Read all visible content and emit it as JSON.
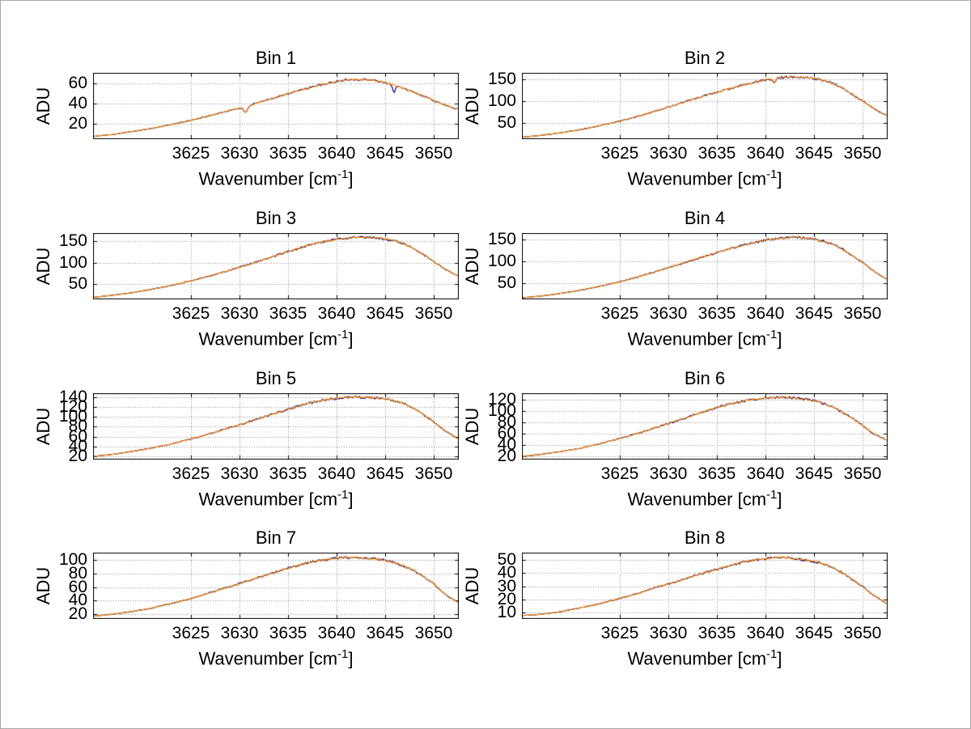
{
  "figure": {
    "background": "#ffffff",
    "grid_style": "dotted",
    "grid_color": "#888888",
    "axis_color": "#000000"
  },
  "chart_data": {
    "type": "line",
    "layout": "4 rows x 2 columns subplots",
    "y_label": "ADU",
    "x_label_prefix": "Wavenumber [cm",
    "x_label_sup": "-1",
    "x_label_suffix": "]",
    "x_ticks": [
      3625,
      3630,
      3635,
      3640,
      3645,
      3650
    ],
    "xlim": [
      3615,
      3652.5
    ],
    "series_colors": {
      "raw": "#00008b",
      "overlay": "#ff8c00"
    },
    "x_control": [
      3615,
      3617,
      3619,
      3621,
      3623,
      3625,
      3627,
      3629,
      3631,
      3633,
      3635,
      3636,
      3637,
      3638,
      3639,
      3640,
      3641,
      3642,
      3643,
      3644,
      3645,
      3646,
      3647,
      3648,
      3649,
      3650,
      3651,
      3652.5
    ],
    "bins": [
      {
        "title": "Bin 1",
        "ylim": [
          5,
          70
        ],
        "y_ticks": [
          20,
          40,
          60
        ],
        "values": [
          7,
          9,
          12,
          15,
          19,
          23,
          28,
          33,
          38,
          44,
          50,
          53,
          55,
          58,
          60,
          62,
          64,
          64,
          64,
          63,
          61,
          58,
          55,
          51,
          47,
          43,
          39,
          34
        ],
        "dips": [
          [
            3630.6,
            6,
            0.2
          ]
        ],
        "blue_dips": [
          [
            3645.9,
            7,
            0.12
          ]
        ]
      },
      {
        "title": "Bin 2",
        "ylim": [
          15,
          162
        ],
        "y_ticks": [
          50,
          100,
          150
        ],
        "values": [
          18,
          22,
          28,
          35,
          44,
          54,
          66,
          79,
          93,
          107,
          120,
          126,
          132,
          138,
          143,
          148,
          152,
          154,
          155,
          154,
          151,
          146,
          140,
          128,
          114,
          100,
          85,
          66
        ],
        "dips": [
          [
            3640.9,
            11,
            0.13
          ]
        ],
        "blue_dips": []
      },
      {
        "title": "Bin 3",
        "ylim": [
          15,
          168
        ],
        "y_ticks": [
          50,
          100,
          150
        ],
        "values": [
          18,
          23,
          29,
          37,
          46,
          57,
          69,
          82,
          96,
          111,
          126,
          133,
          140,
          146,
          151,
          155,
          158,
          160,
          160,
          159,
          156,
          151,
          144,
          132,
          118,
          103,
          87,
          68
        ],
        "dips": [],
        "blue_dips": []
      },
      {
        "title": "Bin 4",
        "ylim": [
          15,
          162
        ],
        "y_ticks": [
          50,
          100,
          150
        ],
        "values": [
          17,
          21,
          27,
          34,
          43,
          53,
          65,
          78,
          92,
          106,
          119,
          126,
          132,
          138,
          143,
          147,
          151,
          153,
          154,
          153,
          150,
          145,
          138,
          126,
          112,
          97,
          80,
          58
        ],
        "dips": [],
        "blue_dips": []
      },
      {
        "title": "Bin 5",
        "ylim": [
          15,
          146
        ],
        "y_ticks": [
          20,
          40,
          60,
          80,
          100,
          120,
          140
        ],
        "values": [
          20,
          24,
          30,
          37,
          45,
          55,
          66,
          78,
          90,
          103,
          115,
          121,
          127,
          131,
          135,
          137,
          139,
          140,
          139,
          138,
          136,
          132,
          126,
          117,
          104,
          90,
          74,
          55
        ],
        "dips": [],
        "blue_dips": []
      },
      {
        "title": "Bin 6",
        "ylim": [
          15,
          130
        ],
        "y_ticks": [
          20,
          40,
          60,
          80,
          100,
          120
        ],
        "values": [
          19,
          23,
          28,
          34,
          42,
          51,
          61,
          72,
          83,
          95,
          106,
          111,
          115,
          118,
          121,
          123,
          124,
          124,
          123,
          121,
          118,
          113,
          106,
          97,
          86,
          74,
          61,
          48
        ],
        "dips": [],
        "blue_dips": []
      },
      {
        "title": "Bin 7",
        "ylim": [
          14,
          110
        ],
        "y_ticks": [
          20,
          40,
          60,
          80,
          100
        ],
        "values": [
          17,
          20,
          24,
          29,
          36,
          43,
          52,
          61,
          70,
          79,
          88,
          92,
          96,
          99,
          101,
          103,
          104,
          104,
          103,
          102,
          100,
          96,
          91,
          84,
          75,
          65,
          51,
          37
        ],
        "dips": [],
        "blue_dips": []
      },
      {
        "title": "Bin 8",
        "ylim": [
          6,
          55
        ],
        "y_ticks": [
          10,
          20,
          30,
          40,
          50
        ],
        "values": [
          8,
          9,
          11,
          14,
          17,
          21,
          25,
          30,
          34,
          39,
          43,
          45,
          47,
          49,
          50,
          51,
          52,
          52,
          51,
          50,
          49,
          47,
          44,
          40,
          35,
          30,
          24,
          17
        ],
        "dips": [],
        "blue_dips": []
      }
    ]
  }
}
